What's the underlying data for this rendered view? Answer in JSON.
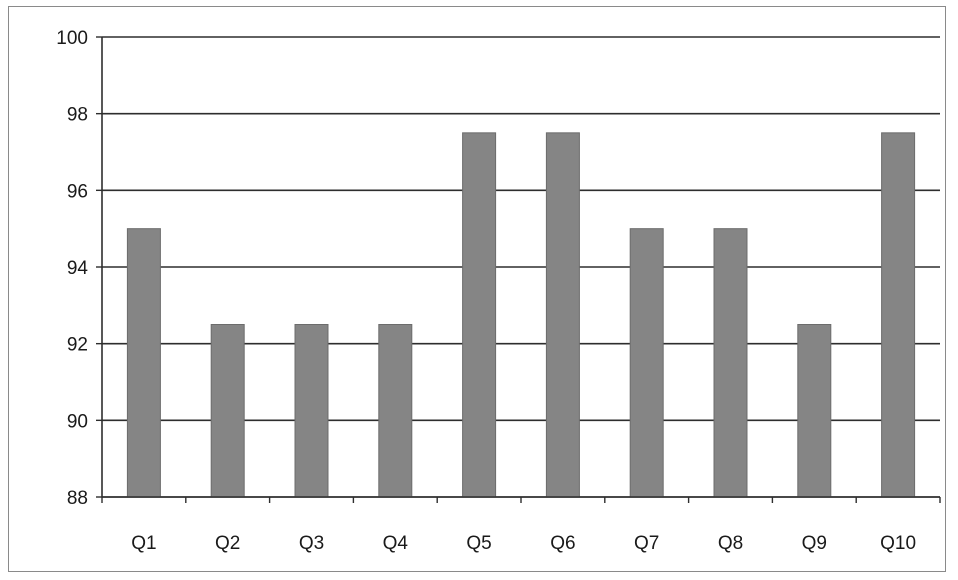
{
  "chart_data": {
    "type": "bar",
    "categories": [
      "Q1",
      "Q2",
      "Q3",
      "Q4",
      "Q5",
      "Q6",
      "Q7",
      "Q8",
      "Q9",
      "Q10"
    ],
    "values": [
      95,
      92.5,
      92.5,
      92.5,
      97.5,
      97.5,
      95,
      95,
      92.5,
      97.5
    ],
    "ylim": [
      88,
      100
    ],
    "yticks": [
      88,
      90,
      92,
      94,
      96,
      98,
      100
    ],
    "grid": true,
    "legend": "none",
    "colors": {
      "bar": "#858585",
      "bar_edge": "#6c6c6c",
      "grid": "#2e2e2e",
      "axis": "#2e2e2e"
    }
  }
}
